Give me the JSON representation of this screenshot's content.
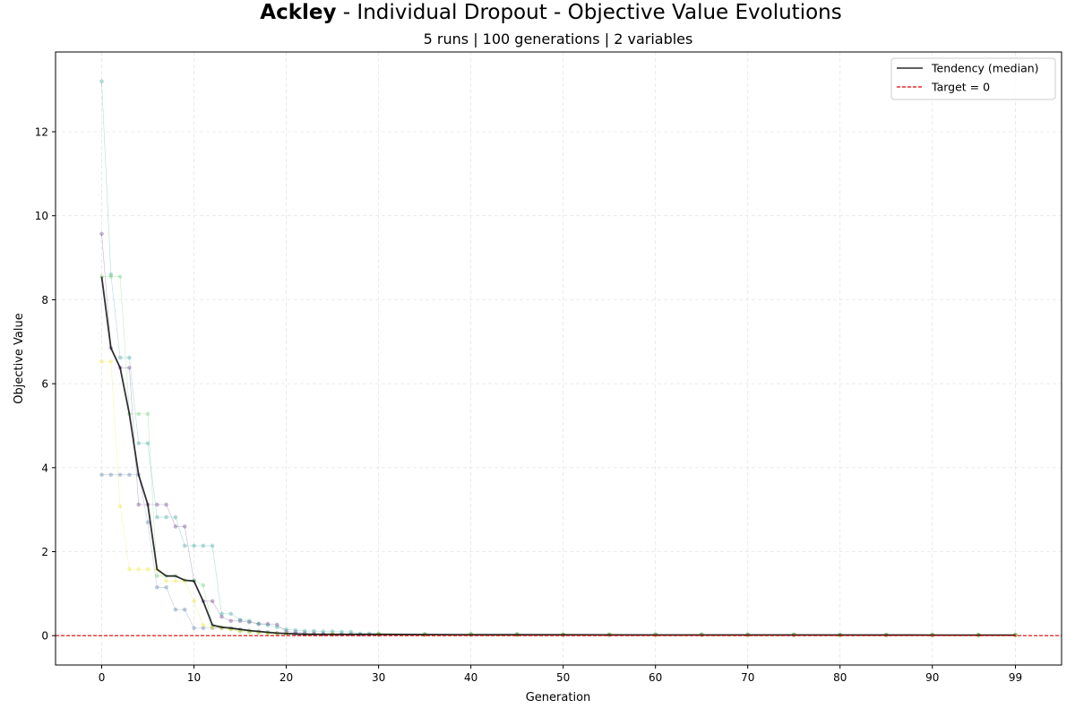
{
  "chart_data": {
    "type": "line",
    "title_bold": "Ackley",
    "title_rest": " - Individual Dropout - Objective Value Evolutions",
    "subtitle": "5 runs | 100 generations | 2 variables",
    "xlabel": "Generation",
    "ylabel": "Objective Value",
    "xlim": [
      -5,
      104
    ],
    "ylim": [
      -0.7,
      13.9
    ],
    "xticks": [
      0,
      10,
      20,
      30,
      40,
      50,
      60,
      70,
      80,
      90,
      99
    ],
    "yticks": [
      0,
      2,
      4,
      6,
      8,
      10,
      12
    ],
    "grid": true,
    "legend_position": "top-right",
    "legend": [
      {
        "label": "Tendency (median)",
        "style": "solid",
        "color": "#000000"
      },
      {
        "label": "Target = 0",
        "style": "dashed",
        "color": "#e00000"
      }
    ],
    "target": 0,
    "series": [
      {
        "color": "#5c2a7a",
        "points": [
          [
            0,
            9.57
          ],
          [
            1,
            6.85
          ],
          [
            2,
            6.38
          ],
          [
            3,
            6.38
          ],
          [
            4,
            3.12
          ],
          [
            5,
            3.12
          ],
          [
            6,
            3.12
          ],
          [
            7,
            3.12
          ],
          [
            8,
            2.6
          ],
          [
            9,
            2.6
          ],
          [
            10,
            1.3
          ],
          [
            11,
            0.82
          ],
          [
            12,
            0.82
          ],
          [
            13,
            0.45
          ],
          [
            14,
            0.35
          ],
          [
            15,
            0.35
          ],
          [
            16,
            0.32
          ],
          [
            17,
            0.28
          ],
          [
            18,
            0.28
          ],
          [
            19,
            0.26
          ],
          [
            20,
            0.1
          ],
          [
            21,
            0.08
          ],
          [
            22,
            0.06
          ],
          [
            23,
            0.05
          ],
          [
            24,
            0.04
          ],
          [
            25,
            0.03
          ],
          [
            26,
            0.03
          ],
          [
            27,
            0.03
          ],
          [
            28,
            0.02
          ],
          [
            29,
            0.02
          ],
          [
            30,
            0.02
          ],
          [
            35,
            0.02
          ],
          [
            40,
            0.02
          ],
          [
            45,
            0.02
          ],
          [
            50,
            0.015
          ],
          [
            55,
            0.015
          ],
          [
            60,
            0.015
          ],
          [
            65,
            0.015
          ],
          [
            70,
            0.012
          ],
          [
            75,
            0.012
          ],
          [
            80,
            0.01
          ],
          [
            85,
            0.01
          ],
          [
            90,
            0.01
          ],
          [
            95,
            0.01
          ],
          [
            99,
            0.01
          ]
        ]
      },
      {
        "color": "#4a6ea0",
        "points": [
          [
            0,
            3.83
          ],
          [
            1,
            3.83
          ],
          [
            2,
            3.83
          ],
          [
            3,
            3.83
          ],
          [
            4,
            3.83
          ],
          [
            5,
            2.7
          ],
          [
            6,
            1.15
          ],
          [
            7,
            1.15
          ],
          [
            8,
            0.62
          ],
          [
            9,
            0.62
          ],
          [
            10,
            0.18
          ],
          [
            11,
            0.18
          ],
          [
            12,
            0.18
          ],
          [
            13,
            0.18
          ],
          [
            14,
            0.18
          ],
          [
            15,
            0.15
          ],
          [
            16,
            0.12
          ],
          [
            17,
            0.1
          ],
          [
            18,
            0.08
          ],
          [
            19,
            0.06
          ],
          [
            20,
            0.05
          ],
          [
            21,
            0.04
          ],
          [
            22,
            0.03
          ],
          [
            23,
            0.03
          ],
          [
            24,
            0.03
          ],
          [
            25,
            0.02
          ],
          [
            30,
            0.02
          ],
          [
            35,
            0.02
          ],
          [
            40,
            0.02
          ],
          [
            45,
            0.02
          ],
          [
            50,
            0.02
          ],
          [
            55,
            0.02
          ],
          [
            60,
            0.02
          ],
          [
            65,
            0.02
          ],
          [
            70,
            0.02
          ],
          [
            75,
            0.02
          ],
          [
            80,
            0.015
          ],
          [
            85,
            0.015
          ],
          [
            90,
            0.015
          ],
          [
            95,
            0.015
          ],
          [
            99,
            0.015
          ]
        ]
      },
      {
        "color": "#2a9d96",
        "points": [
          [
            0,
            13.2
          ],
          [
            1,
            8.6
          ],
          [
            2,
            6.62
          ],
          [
            3,
            6.62
          ],
          [
            4,
            4.58
          ],
          [
            5,
            4.58
          ],
          [
            6,
            2.82
          ],
          [
            7,
            2.82
          ],
          [
            8,
            2.82
          ],
          [
            9,
            2.14
          ],
          [
            10,
            2.14
          ],
          [
            11,
            2.14
          ],
          [
            12,
            2.14
          ],
          [
            13,
            0.52
          ],
          [
            14,
            0.52
          ],
          [
            15,
            0.38
          ],
          [
            16,
            0.35
          ],
          [
            17,
            0.28
          ],
          [
            18,
            0.25
          ],
          [
            19,
            0.2
          ],
          [
            20,
            0.15
          ],
          [
            21,
            0.13
          ],
          [
            22,
            0.11
          ],
          [
            23,
            0.11
          ],
          [
            24,
            0.1
          ],
          [
            25,
            0.1
          ],
          [
            26,
            0.09
          ],
          [
            27,
            0.09
          ],
          [
            28,
            0.05
          ],
          [
            29,
            0.05
          ],
          [
            30,
            0.05
          ],
          [
            35,
            0.04
          ],
          [
            40,
            0.04
          ],
          [
            45,
            0.04
          ],
          [
            50,
            0.03
          ],
          [
            55,
            0.03
          ],
          [
            60,
            0.03
          ],
          [
            65,
            0.03
          ],
          [
            70,
            0.03
          ],
          [
            75,
            0.03
          ],
          [
            80,
            0.02
          ],
          [
            85,
            0.02
          ],
          [
            90,
            0.02
          ],
          [
            95,
            0.02
          ],
          [
            99,
            0.02
          ]
        ]
      },
      {
        "color": "#5cc863",
        "points": [
          [
            0,
            8.55
          ],
          [
            1,
            8.55
          ],
          [
            2,
            8.55
          ],
          [
            3,
            5.28
          ],
          [
            4,
            5.28
          ],
          [
            5,
            5.28
          ],
          [
            6,
            1.42
          ],
          [
            7,
            1.42
          ],
          [
            8,
            1.42
          ],
          [
            9,
            1.32
          ],
          [
            10,
            1.32
          ],
          [
            11,
            1.2
          ],
          [
            12,
            0.25
          ],
          [
            13,
            0.2
          ],
          [
            14,
            0.15
          ],
          [
            15,
            0.1
          ],
          [
            16,
            0.08
          ],
          [
            17,
            0.07
          ],
          [
            18,
            0.06
          ],
          [
            19,
            0.05
          ],
          [
            20,
            0.05
          ],
          [
            25,
            0.04
          ],
          [
            30,
            0.04
          ],
          [
            35,
            0.03
          ],
          [
            40,
            0.03
          ],
          [
            45,
            0.03
          ],
          [
            50,
            0.02
          ],
          [
            55,
            0.02
          ],
          [
            60,
            0.02
          ],
          [
            65,
            0.02
          ],
          [
            70,
            0.02
          ],
          [
            75,
            0.02
          ],
          [
            80,
            0.02
          ],
          [
            85,
            0.02
          ],
          [
            90,
            0.02
          ],
          [
            95,
            0.02
          ],
          [
            99,
            0.02
          ]
        ]
      },
      {
        "color": "#f2e01a",
        "points": [
          [
            0,
            6.53
          ],
          [
            1,
            6.53
          ],
          [
            2,
            3.08
          ],
          [
            3,
            1.58
          ],
          [
            4,
            1.58
          ],
          [
            5,
            1.58
          ],
          [
            6,
            1.58
          ],
          [
            7,
            1.3
          ],
          [
            8,
            1.3
          ],
          [
            9,
            1.3
          ],
          [
            10,
            0.82
          ],
          [
            11,
            0.25
          ],
          [
            12,
            0.2
          ],
          [
            13,
            0.18
          ],
          [
            14,
            0.15
          ],
          [
            15,
            0.12
          ],
          [
            16,
            0.1
          ],
          [
            17,
            0.08
          ],
          [
            18,
            0.06
          ],
          [
            19,
            0.05
          ],
          [
            20,
            0.04
          ],
          [
            25,
            0.03
          ],
          [
            30,
            0.03
          ],
          [
            35,
            0.02
          ],
          [
            40,
            0.02
          ],
          [
            45,
            0.02
          ],
          [
            50,
            0.02
          ],
          [
            55,
            0.02
          ],
          [
            60,
            0.015
          ],
          [
            65,
            0.015
          ],
          [
            70,
            0.015
          ],
          [
            75,
            0.015
          ],
          [
            80,
            0.01
          ],
          [
            85,
            0.01
          ],
          [
            90,
            0.01
          ],
          [
            95,
            0.01
          ],
          [
            99,
            0.01
          ]
        ]
      }
    ],
    "median": [
      [
        0,
        8.55
      ],
      [
        1,
        6.85
      ],
      [
        2,
        6.38
      ],
      [
        3,
        5.28
      ],
      [
        4,
        3.83
      ],
      [
        5,
        3.12
      ],
      [
        6,
        1.58
      ],
      [
        7,
        1.42
      ],
      [
        8,
        1.42
      ],
      [
        9,
        1.32
      ],
      [
        10,
        1.3
      ],
      [
        11,
        0.82
      ],
      [
        12,
        0.25
      ],
      [
        13,
        0.2
      ],
      [
        14,
        0.18
      ],
      [
        15,
        0.15
      ],
      [
        16,
        0.12
      ],
      [
        17,
        0.1
      ],
      [
        18,
        0.08
      ],
      [
        19,
        0.06
      ],
      [
        20,
        0.05
      ],
      [
        21,
        0.04
      ],
      [
        22,
        0.03
      ],
      [
        25,
        0.03
      ],
      [
        30,
        0.03
      ],
      [
        40,
        0.02
      ],
      [
        50,
        0.02
      ],
      [
        60,
        0.015
      ],
      [
        70,
        0.015
      ],
      [
        80,
        0.015
      ],
      [
        90,
        0.012
      ],
      [
        99,
        0.012
      ]
    ]
  }
}
